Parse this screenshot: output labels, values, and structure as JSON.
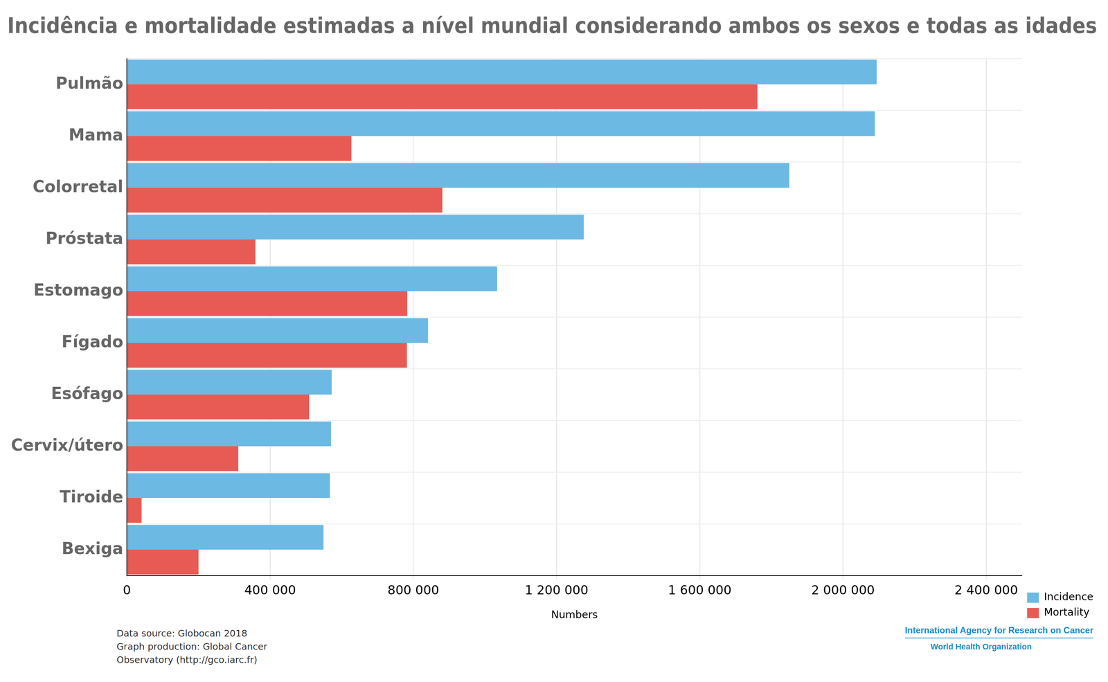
{
  "chart_data": {
    "type": "bar",
    "orientation": "horizontal",
    "title": "Incidência e mortalidade estimadas a nível mundial considerando ambos os sexos e todas as idades",
    "x_label": "Numbers",
    "categories": [
      "Pulmão",
      "Mama",
      "Colorretal",
      "Próstata",
      "Estomago",
      "Fígado",
      "Esófago",
      "Cervix/útero",
      "Tiroide",
      "Bexiga"
    ],
    "series": [
      {
        "name": "Incidence",
        "color": "#6cb9e4",
        "values": [
          2094000,
          2089000,
          1850000,
          1276000,
          1034000,
          841000,
          572000,
          570000,
          567000,
          549000
        ]
      },
      {
        "name": "Mortality",
        "color": "#e85b55",
        "values": [
          1761000,
          627000,
          881000,
          359000,
          783000,
          782000,
          509000,
          311000,
          41000,
          200000
        ]
      }
    ],
    "xlim": [
      0,
      2500000
    ],
    "xticks": [
      0,
      {
        "value": 400000,
        "label": "400 000"
      },
      {
        "value": 800000,
        "label": "800 000"
      },
      {
        "value": 1200000,
        "label": "1 200 000"
      },
      {
        "value": 1600000,
        "label": "1 600 000"
      },
      {
        "value": 2000000,
        "label": "2 000 000"
      },
      {
        "value": 2400000,
        "label": "2 400 000"
      }
    ],
    "grid": true,
    "legend": "lower right"
  },
  "footer": {
    "source": [
      "Data source: Globocan 2018",
      "Graph production: Global Cancer",
      "Observatory (http://gco.iarc.fr)"
    ],
    "logo": [
      "International Agency for Research on Cancer",
      "World Health Organization"
    ]
  }
}
